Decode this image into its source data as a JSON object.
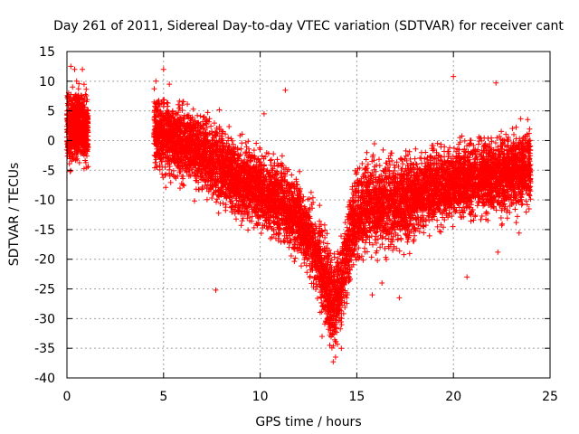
{
  "chart_data": {
    "type": "scatter",
    "title": "Day 261 of 2011, Sidereal Day-to-day VTEC variation (SDTVAR) for receiver cant",
    "xlabel": "GPS time / hours",
    "ylabel": "SDTVAR / TECUs",
    "xlim": [
      0,
      25
    ],
    "ylim": [
      -40,
      15
    ],
    "xticks": [
      0,
      5,
      10,
      15,
      20,
      25
    ],
    "yticks": [
      15,
      10,
      5,
      0,
      -5,
      -10,
      -15,
      -20,
      -25,
      -30,
      -35,
      -40
    ],
    "grid": true,
    "marker": "+",
    "color": "#ff0000",
    "series": [
      {
        "name": "SDTVAR",
        "description_points": "dense scatter, ~0-1 h then 4.5-24 h",
        "clusters": [
          {
            "x": [
              0.0,
              1.1
            ],
            "y_center": 2.5,
            "y_spread": 4.5
          },
          {
            "x": [
              4.5,
              8.0
            ],
            "y_center": 0.0,
            "y_spread": 5.0
          },
          {
            "x": [
              8.0,
              12.5
            ],
            "y_center": -9.0,
            "y_spread": 5.0
          },
          {
            "x": [
              12.5,
              14.5
            ],
            "y_center": -24.0,
            "y_spread": 6.0
          },
          {
            "x": [
              14.5,
              18.0
            ],
            "y_center": -11.0,
            "y_spread": 6.0
          },
          {
            "x": [
              18.0,
              24.0
            ],
            "y_center": -5.0,
            "y_spread": 5.0
          }
        ],
        "trend": [
          [
            0.0,
            1.5
          ],
          [
            0.5,
            3.0
          ],
          [
            1.0,
            2.0
          ],
          [
            4.5,
            1.5
          ],
          [
            5.0,
            0.5
          ],
          [
            6.0,
            -0.5
          ],
          [
            7.0,
            -2.0
          ],
          [
            8.0,
            -4.5
          ],
          [
            9.0,
            -7.0
          ],
          [
            10.0,
            -8.5
          ],
          [
            11.0,
            -10.5
          ],
          [
            12.0,
            -13.0
          ],
          [
            12.5,
            -16.0
          ],
          [
            13.0,
            -20.0
          ],
          [
            13.5,
            -25.0
          ],
          [
            13.8,
            -28.0
          ],
          [
            14.2,
            -24.0
          ],
          [
            14.6,
            -17.0
          ],
          [
            15.0,
            -13.0
          ],
          [
            15.5,
            -11.0
          ],
          [
            16.0,
            -11.0
          ],
          [
            17.0,
            -11.0
          ],
          [
            18.0,
            -9.5
          ],
          [
            19.0,
            -8.0
          ],
          [
            20.0,
            -7.0
          ],
          [
            21.0,
            -6.5
          ],
          [
            22.0,
            -6.0
          ],
          [
            23.0,
            -5.5
          ],
          [
            24.0,
            -4.0
          ]
        ],
        "outliers": [
          [
            0.2,
            12.5
          ],
          [
            0.4,
            12.0
          ],
          [
            0.8,
            12.0
          ],
          [
            0.5,
            10.0
          ],
          [
            4.6,
            10.0
          ],
          [
            5.0,
            12.0
          ],
          [
            5.3,
            9.5
          ],
          [
            11.3,
            8.5
          ],
          [
            10.2,
            4.5
          ],
          [
            7.7,
            -25.2
          ],
          [
            20.0,
            10.8
          ],
          [
            22.2,
            9.7
          ],
          [
            13.9,
            -36.5
          ],
          [
            13.6,
            -34.5
          ],
          [
            14.2,
            -35.0
          ],
          [
            20.7,
            -23.0
          ],
          [
            22.3,
            -18.8
          ],
          [
            23.4,
            -15.6
          ],
          [
            15.8,
            -26.0
          ],
          [
            16.3,
            -24.0
          ],
          [
            17.2,
            -26.5
          ],
          [
            13.2,
            -33.0
          ]
        ],
        "point_count": 9000
      }
    ]
  }
}
